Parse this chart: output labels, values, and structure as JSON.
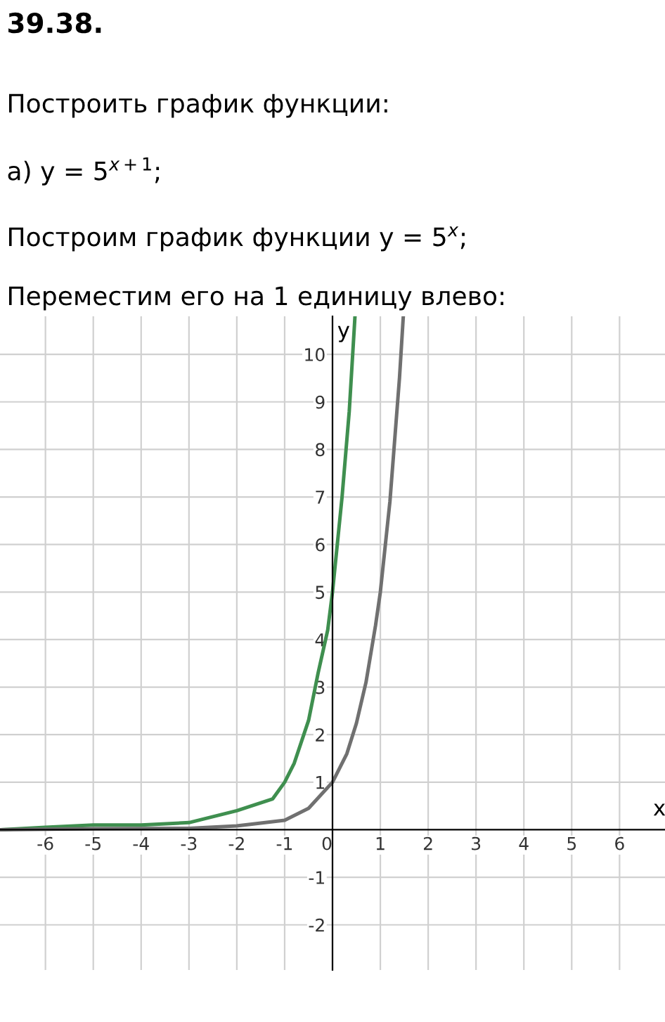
{
  "chart_data": {
    "type": "line",
    "title": "39.38.",
    "subtitle": "Построить график функции:",
    "annotations": [
      "а) y = 5$^{x+1}$;",
      "Построим график функции y = 5$^{x}$;",
      "Переместим его на 1 единицу влево:"
    ],
    "xlabel": "x",
    "ylabel": "y",
    "series": [
      {
        "color": "#3f8f4f",
        "x": [
          -6.95,
          -6,
          -5,
          -4,
          -3,
          -2,
          -1.25,
          -1,
          -0.8,
          -0.5,
          -0.3,
          -0.1,
          0,
          0.2,
          0.35,
          0.47
        ],
        "values": [
          0.0,
          0.05,
          0.1,
          0.1,
          0.15,
          0.4,
          0.65,
          1.0,
          1.4,
          2.3,
          3.3,
          4.2,
          5,
          7,
          8.8,
          10.8
        ]
      },
      {
        "color": "#707070",
        "x": [
          -6.95,
          -5,
          -3,
          -2,
          -1,
          -0.5,
          0,
          0.3,
          0.5,
          0.7,
          0.9,
          1,
          1.2,
          1.4,
          1.48
        ],
        "values": [
          0.0,
          0.02,
          0.03,
          0.08,
          0.2,
          0.45,
          1,
          1.6,
          2.24,
          3.1,
          4.3,
          5,
          6.9,
          9.5,
          10.8
        ]
      }
    ],
    "xlim": [
      -6.95,
      6.95
    ],
    "ylim": [
      -2.95,
      10.8
    ],
    "xticks": [
      -6,
      -5,
      -4,
      -3,
      -2,
      -1,
      0,
      1,
      2,
      3,
      4,
      5,
      6
    ],
    "yticks": [
      -2,
      -1,
      1,
      2,
      3,
      4,
      5,
      6,
      7,
      8,
      9,
      10
    ],
    "grid": true,
    "marker": "none",
    "line_style": "solid"
  }
}
